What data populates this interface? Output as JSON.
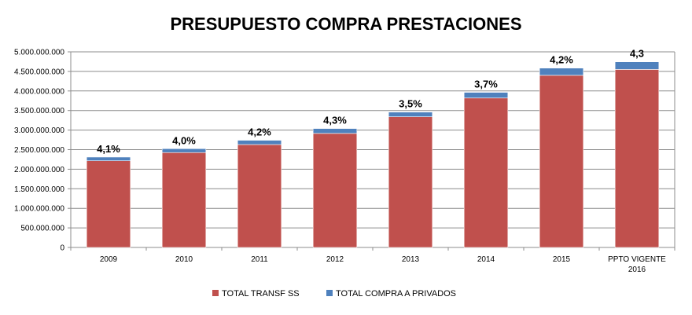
{
  "chart_data": {
    "type": "bar",
    "stacked": true,
    "title": "PRESUPUESTO COMPRA  PRESTACIONES",
    "xlabel": "",
    "ylabel": "",
    "categories": [
      "2009",
      "2010",
      "2011",
      "2012",
      "2013",
      "2014",
      "2015",
      [
        "PPTO VIGENTE",
        "2016"
      ]
    ],
    "series": [
      {
        "name": "TOTAL TRANSF SS",
        "color": "#c0504d",
        "values": [
          2215000000,
          2425000000,
          2630000000,
          2915000000,
          3340000000,
          3820000000,
          4400000000,
          4550000000
        ]
      },
      {
        "name": "TOTAL COMPRA A PRIVADOS",
        "color": "#4f81bd",
        "values": [
          95000000,
          100000000,
          110000000,
          125000000,
          120000000,
          145000000,
          185000000,
          195000000
        ]
      }
    ],
    "data_labels": [
      "4,1%",
      "4,0%",
      "4,2%",
      "4,3%",
      "3,5%",
      "3,7%",
      "4,2%",
      "4,3"
    ],
    "y_ticks": [
      "0",
      "500.000.000",
      "1.000.000.000",
      "1.500.000.000",
      "2.000.000.000",
      "2.500.000.000",
      "3.000.000.000",
      "3.500.000.000",
      "4.000.000.000",
      "4.500.000.000",
      "5.000.000.000"
    ],
    "ylim": [
      0,
      5000000000
    ],
    "grid": true,
    "legend_position": "bottom"
  }
}
